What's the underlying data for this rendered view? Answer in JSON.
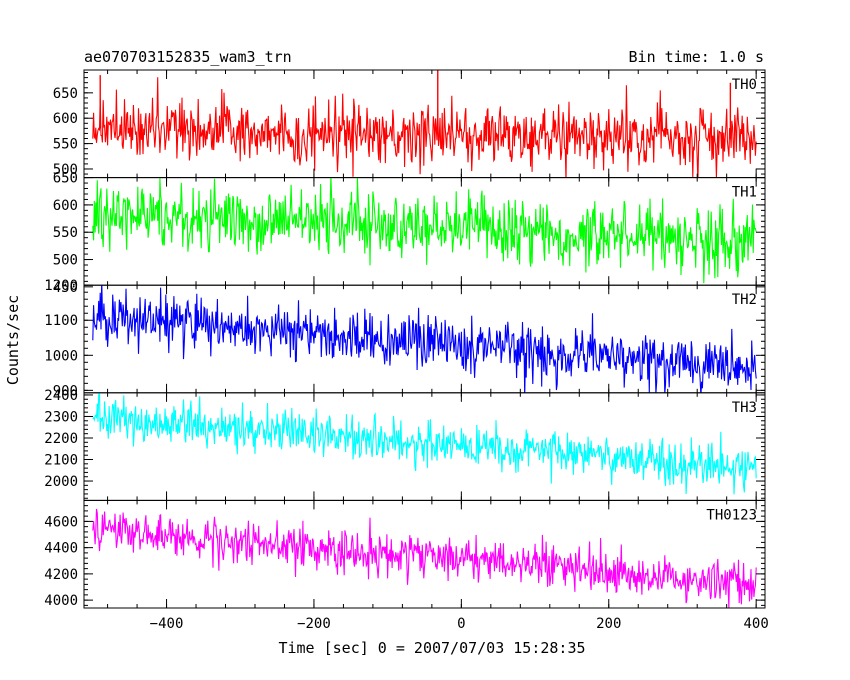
{
  "header": {
    "title": "ae070703152835_wam3_trn",
    "bin_time": "Bin time: 1.0 s"
  },
  "axes": {
    "xlabel": "Time [sec] 0 = 2007/07/03 15:28:35",
    "ylabel": "Counts/sec"
  },
  "chart_data": {
    "type": "line",
    "title": "ae070703152835_wam3_trn",
    "xlabel": "Time [sec] 0 = 2007/07/03 15:28:35",
    "ylabel": "Counts/sec",
    "xlim": [
      -512,
      412
    ],
    "x_ticks": [
      -400,
      -200,
      0,
      200,
      400
    ],
    "bin_time_s": 1.0,
    "grid": false,
    "panels": [
      {
        "name": "TH0",
        "ylim": [
          483,
          695
        ],
        "y_ticks": [
          500,
          550,
          600,
          650
        ],
        "color": "#ff0000",
        "trend": {
          "x": [
            -500,
            400
          ],
          "y": [
            580,
            558
          ]
        },
        "noise_sd": 30,
        "spikes": [
          {
            "x": -32,
            "y": 695
          },
          {
            "x": -490,
            "y": 685
          },
          {
            "x": 365,
            "y": 670
          }
        ]
      },
      {
        "name": "TH1",
        "ylim": [
          453,
          650
        ],
        "y_ticks": [
          450,
          500,
          550,
          600,
          650
        ],
        "color": "#00ff00",
        "trend": {
          "x": [
            -500,
            400
          ],
          "y": [
            585,
            535
          ]
        },
        "noise_sd": 30,
        "spikes": []
      },
      {
        "name": "TH2",
        "ylim": [
          893,
          1200
        ],
        "y_ticks": [
          900,
          1000,
          1100,
          1200
        ],
        "color": "#0000ff",
        "trend": {
          "x": [
            -500,
            400
          ],
          "y": [
            1110,
            965
          ]
        },
        "noise_sd": 38,
        "spikes": []
      },
      {
        "name": "TH3",
        "ylim": [
          1910,
          2410
        ],
        "y_ticks": [
          2000,
          2100,
          2200,
          2300,
          2400
        ],
        "color": "#00ffff",
        "trend": {
          "x": [
            -500,
            400
          ],
          "y": [
            2295,
            2060
          ]
        },
        "noise_sd": 50,
        "spikes": []
      },
      {
        "name": "TH0123",
        "ylim": [
          3940,
          4760
        ],
        "y_ticks": [
          4000,
          4200,
          4400,
          4600
        ],
        "color": "#ff00ff",
        "trend": {
          "x": [
            -500,
            400
          ],
          "y": [
            4540,
            4120
          ]
        },
        "noise_sd": 80,
        "spikes": []
      }
    ]
  }
}
